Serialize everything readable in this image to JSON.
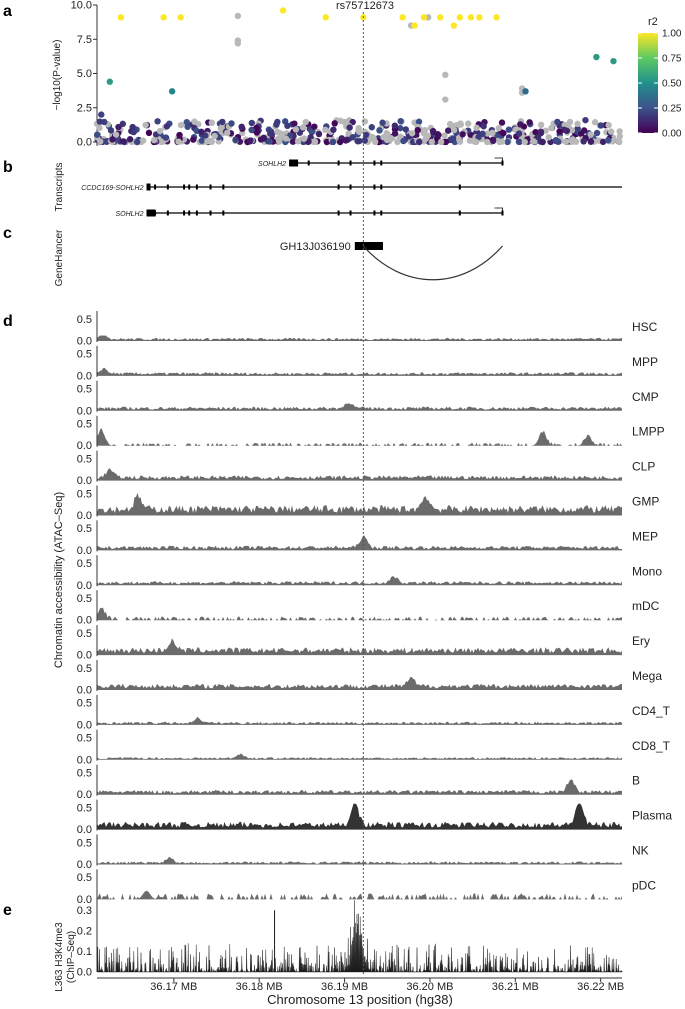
{
  "chart_data": [
    {
      "panel": "a",
      "type": "scatter",
      "ylabel": "−log10(P-value)",
      "lead_snp": "rs75712673",
      "yticks": [
        "10.0",
        "7.5",
        "5.0",
        "2.5",
        "0.0"
      ],
      "ylim": [
        0,
        10
      ],
      "xlim": [
        36.161,
        36.2225
      ],
      "colorbar": {
        "title": "r2",
        "ticks": [
          "1.00",
          "0.75",
          "0.50",
          "0.25",
          "0.00"
        ],
        "range": [
          0,
          1
        ]
      },
      "highlighted_points": [
        {
          "x": 36.1625,
          "y": 4.4,
          "r2": 0.55
        },
        {
          "x": 36.1615,
          "y": 2.0,
          "r2": 0.2
        },
        {
          "x": 36.1698,
          "y": 3.7,
          "r2": 0.45
        },
        {
          "x": 36.1638,
          "y": 9.1,
          "r2": 1.0
        },
        {
          "x": 36.1688,
          "y": 9.1,
          "r2": 1.0
        },
        {
          "x": 36.1708,
          "y": 9.1,
          "r2": 1.0
        },
        {
          "x": 36.1828,
          "y": 9.6,
          "r2": 1.0
        },
        {
          "x": 36.1878,
          "y": 9.1,
          "r2": 1.0
        },
        {
          "x": 36.1922,
          "y": 9.1,
          "r2": 1.0
        },
        {
          "x": 36.1968,
          "y": 9.1,
          "r2": 1.0
        },
        {
          "x": 36.1982,
          "y": 8.5,
          "r2": 1.0
        },
        {
          "x": 36.1993,
          "y": 9.1,
          "r2": 1.0
        },
        {
          "x": 36.2012,
          "y": 9.1,
          "r2": 1.0
        },
        {
          "x": 36.2028,
          "y": 8.5,
          "r2": 1.0
        },
        {
          "x": 36.2035,
          "y": 9.1,
          "r2": 1.0
        },
        {
          "x": 36.2048,
          "y": 9.1,
          "r2": 1.0
        },
        {
          "x": 36.2058,
          "y": 9.1,
          "r2": 1.0
        },
        {
          "x": 36.2078,
          "y": 9.1,
          "r2": 1.0
        },
        {
          "x": 36.2112,
          "y": 3.7,
          "r2": 0.35
        },
        {
          "x": 36.2195,
          "y": 6.2,
          "r2": 0.55
        },
        {
          "x": 36.2215,
          "y": 5.9,
          "r2": 0.55
        }
      ],
      "grey_points": [
        {
          "x": 36.1775,
          "y": 9.2
        },
        {
          "x": 36.1775,
          "y": 7.4
        },
        {
          "x": 36.1775,
          "y": 7.2
        },
        {
          "x": 36.1998,
          "y": 9.1
        },
        {
          "x": 36.1978,
          "y": 8.5
        },
        {
          "x": 36.2018,
          "y": 4.9
        },
        {
          "x": 36.2018,
          "y": 3.1
        },
        {
          "x": 36.2108,
          "y": 3.9
        },
        {
          "x": 36.2108,
          "y": 3.6
        }
      ]
    },
    {
      "panel": "b",
      "type": "gene-track",
      "ylabel": "Transcripts",
      "transcripts": [
        {
          "name": "SOHLH2",
          "start": 36.1835,
          "end": 36.2085,
          "strand": "-",
          "exons": [
            36.1835,
            36.1858,
            36.1893,
            36.1907,
            36.1935,
            36.1943,
            36.2035,
            36.2085
          ]
        },
        {
          "name": "CCDC169-SOHLH2",
          "start": 36.1668,
          "end": 36.2225,
          "strand": "",
          "exons": [
            36.1668,
            36.1678,
            36.1693,
            36.1712,
            36.1718,
            36.1727,
            36.1743,
            36.1758,
            36.1893,
            36.1907,
            36.1935,
            36.1943,
            36.2035
          ]
        },
        {
          "name": "SOHLH2",
          "start": 36.1668,
          "end": 36.2085,
          "strand": "-",
          "exons": [
            36.1668,
            36.1678,
            36.1693,
            36.1712,
            36.1718,
            36.1727,
            36.1743,
            36.1758,
            36.1893,
            36.1907,
            36.1935,
            36.1943,
            36.2035,
            36.2085
          ]
        }
      ]
    },
    {
      "panel": "c",
      "type": "enhancer-track",
      "ylabel": "GeneHancer",
      "element": {
        "name": "GH13J036190",
        "start": 36.1912,
        "end": 36.1945
      },
      "link_to": 36.2085
    },
    {
      "panel": "d",
      "type": "area",
      "ylabel": "Chromatin accessibility (ATAC–Seq)",
      "yticks": [
        "0.5",
        "0.0"
      ],
      "ylim": [
        0,
        0.6
      ],
      "tracks": [
        {
          "name": "HSC",
          "baseline": 0.06,
          "peaks": [
            [
              36.1618,
              0.1
            ]
          ]
        },
        {
          "name": "MPP",
          "baseline": 0.07,
          "peaks": [
            [
              36.1618,
              0.12
            ]
          ]
        },
        {
          "name": "CMP",
          "baseline": 0.08,
          "peaks": [
            [
              36.1905,
              0.14
            ]
          ]
        },
        {
          "name": "LMPP",
          "baseline": 0.06,
          "peaks": [
            [
              36.1615,
              0.35
            ],
            [
              36.2185,
              0.2
            ],
            [
              36.2132,
              0.3
            ]
          ]
        },
        {
          "name": "CLP",
          "baseline": 0.1,
          "peaks": [
            [
              36.1625,
              0.18
            ]
          ]
        },
        {
          "name": "GMP",
          "baseline": 0.2,
          "peaks": [
            [
              36.1658,
              0.3
            ],
            [
              36.1995,
              0.3
            ]
          ]
        },
        {
          "name": "MEP",
          "baseline": 0.09,
          "peaks": [
            [
              36.1922,
              0.25
            ]
          ]
        },
        {
          "name": "Mono",
          "baseline": 0.08,
          "peaks": [
            [
              36.1958,
              0.14
            ]
          ]
        },
        {
          "name": "mDC",
          "baseline": 0.07,
          "peaks": [
            [
              36.1615,
              0.25
            ]
          ]
        },
        {
          "name": "Ery",
          "baseline": 0.15,
          "peaks": [
            [
              36.1698,
              0.22
            ]
          ]
        },
        {
          "name": "Mega",
          "baseline": 0.12,
          "peaks": [
            [
              36.1978,
              0.18
            ]
          ]
        },
        {
          "name": "CD4_T",
          "baseline": 0.06,
          "peaks": [
            [
              36.1728,
              0.12
            ]
          ]
        },
        {
          "name": "CD8_T",
          "baseline": 0.05,
          "peaks": [
            [
              36.1778,
              0.1
            ]
          ]
        },
        {
          "name": "B",
          "baseline": 0.09,
          "peaks": [
            [
              36.2165,
              0.28
            ]
          ]
        },
        {
          "name": "Plasma",
          "baseline": 0.15,
          "peaks": [
            [
              36.1912,
              0.55
            ],
            [
              36.2175,
              0.55
            ]
          ]
        },
        {
          "name": "NK",
          "baseline": 0.06,
          "peaks": [
            [
              36.1695,
              0.12
            ]
          ]
        },
        {
          "name": "pDC",
          "baseline": 0.12,
          "peaks": [
            [
              36.1668,
              0.2
            ]
          ]
        }
      ]
    },
    {
      "panel": "e",
      "type": "bar",
      "ylabel": [
        "L363 H3K4me3",
        "(ChIP–Seq)"
      ],
      "yticks": [
        "0.3",
        "0.2",
        "0.1",
        "0.0"
      ],
      "ylim": [
        0,
        0.35
      ],
      "peaks": [
        [
          36.1915,
          0.3
        ],
        [
          36.1818,
          0.3
        ]
      ]
    }
  ],
  "xaxis": {
    "label": "Chromosome 13 position (hg38)",
    "ticks": [
      "36.17 MB",
      "36.18 MB",
      "36.19 MB",
      "36.20 MB",
      "36.21 MB",
      "36.22 MB"
    ],
    "tick_values": [
      36.17,
      36.18,
      36.19,
      36.2,
      36.21,
      36.22
    ],
    "lead_position": 36.1922
  },
  "panel_letters": [
    "a",
    "b",
    "c",
    "d",
    "e"
  ],
  "colors": {
    "grey_point": "#b8b8b8",
    "track_fill": "#6b6b6b",
    "chip_fill": "#1a1a1a",
    "dotted_line": "#555555"
  }
}
